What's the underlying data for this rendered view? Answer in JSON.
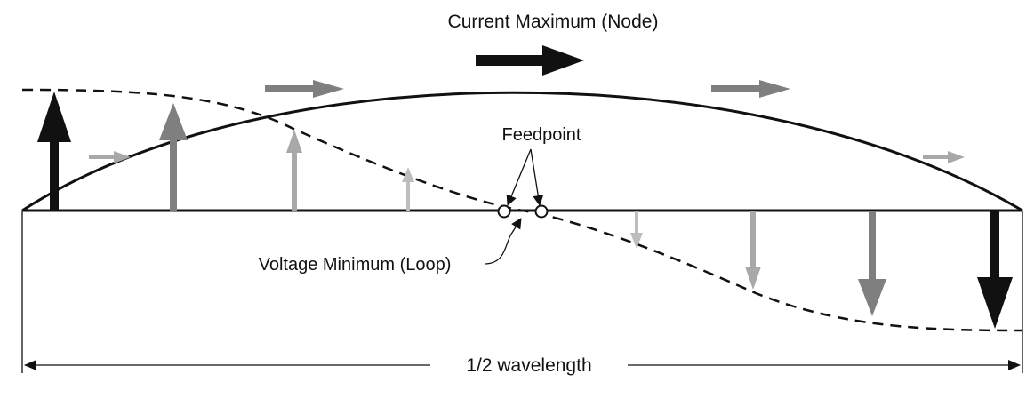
{
  "labels": {
    "current_maximum": "Current Maximum (Node)",
    "feedpoint": "Feedpoint",
    "voltage_minimum": "Voltage Minimum (Loop)",
    "half_wavelength": "1/2 wavelength"
  },
  "colors": {
    "ink": "#111111",
    "arrow_dark": "#111111",
    "arrow_mid": "#7f7f7f",
    "arrow_light": "#a8a8a8",
    "background": "#ffffff"
  },
  "icons": {
    "main_current_arrow": "right-arrow-icon",
    "feedpoint_terminal": "open-circle-icon"
  }
}
